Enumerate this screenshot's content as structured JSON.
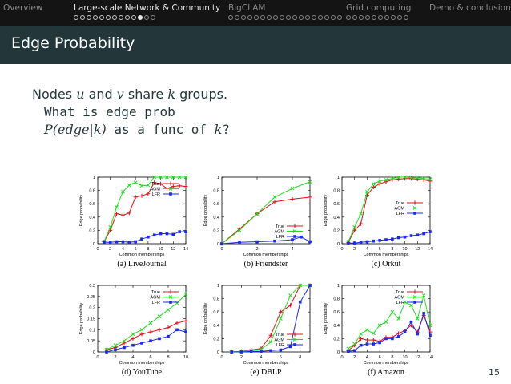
{
  "nav": {
    "sections": [
      {
        "label": "Overview",
        "dots": 0,
        "done": 0,
        "current": -1
      },
      {
        "label": "Large-scale Network & Community",
        "dots": 13,
        "done": 10,
        "current": 10
      },
      {
        "label": "BigCLAM",
        "dots": 18,
        "done": 0,
        "current": -1
      },
      {
        "label": "Grid computing",
        "dots": 10,
        "done": 0,
        "current": -1
      },
      {
        "label": "Demo & conclusion",
        "dots": 0,
        "done": 0,
        "current": -1
      }
    ]
  },
  "slide": {
    "title": "Edge Probability",
    "line1": {
      "a": "Nodes ",
      "u": "u",
      "b": " and ",
      "v": "v",
      "c": " share ",
      "k": "k",
      "d": " groups."
    },
    "line2": "What is edge prob",
    "line3": {
      "expr": "P(edge|k)",
      "mid": " as a func of ",
      "k": "k",
      "end": "?"
    },
    "page_number": "15"
  },
  "chart_data": [
    {
      "type": "line",
      "caption": "(a) LiveJournal",
      "xlabel": "Common memberships",
      "ylabel": "Edge probability",
      "xlim": [
        0,
        14
      ],
      "ylim": [
        0,
        1
      ],
      "xticks": [
        "0",
        "2",
        "4",
        "6",
        "8",
        "10",
        "12",
        "14"
      ],
      "yticks": [
        "0",
        "0.2",
        "0.4",
        "0.6",
        "0.8",
        "1"
      ],
      "legend": "top-right",
      "series": [
        {
          "name": "True",
          "color": "#e0101a",
          "marker": "plus",
          "x": [
            1,
            2,
            3,
            4,
            5,
            6,
            7,
            8,
            9,
            10,
            11,
            12,
            13,
            14
          ],
          "y": [
            0.03,
            0.2,
            0.45,
            0.43,
            0.46,
            0.7,
            0.72,
            0.75,
            0.92,
            0.9,
            0.83,
            0.86,
            0.87,
            0.86
          ]
        },
        {
          "name": "AGM",
          "color": "#22dd22",
          "marker": "x",
          "x": [
            1,
            2,
            3,
            4,
            5,
            6,
            7,
            8,
            9,
            10,
            11,
            12,
            13,
            14
          ],
          "y": [
            0.03,
            0.25,
            0.55,
            0.78,
            0.88,
            0.92,
            0.87,
            0.88,
            1,
            1,
            1,
            1,
            1,
            1
          ]
        },
        {
          "name": "LFR",
          "color": "#1a2ae8",
          "marker": "square",
          "x": [
            1,
            2,
            3,
            4,
            5,
            6,
            7,
            8,
            9,
            10,
            11,
            12,
            13,
            14
          ],
          "y": [
            0.02,
            0.02,
            0.03,
            0.03,
            0.02,
            0.03,
            0.07,
            0.1,
            0.13,
            0.15,
            0.15,
            0.14,
            0.18,
            0.18
          ]
        }
      ]
    },
    {
      "type": "line",
      "caption": "(b) Friendster",
      "xlabel": "Common memberships",
      "ylabel": "Edge probability",
      "xlim": [
        0,
        5
      ],
      "ylim": [
        0,
        1
      ],
      "xticks": [
        "0",
        "2",
        "4"
      ],
      "yticks": [
        "0",
        "0.2",
        "0.4",
        "0.6",
        "0.8",
        "1"
      ],
      "legend": "bottom-right",
      "series": [
        {
          "name": "True",
          "color": "#e0101a",
          "marker": "plus",
          "x": [
            0,
            1,
            2,
            3,
            4,
            5
          ],
          "y": [
            0,
            0.22,
            0.45,
            0.63,
            0.67,
            0.7
          ]
        },
        {
          "name": "AGM",
          "color": "#22dd22",
          "marker": "x",
          "x": [
            0,
            1,
            2,
            3,
            4,
            5
          ],
          "y": [
            0,
            0.2,
            0.45,
            0.7,
            0.83,
            0.93
          ]
        },
        {
          "name": "LFR",
          "color": "#1a2ae8",
          "marker": "square",
          "x": [
            0,
            1,
            2,
            3,
            4,
            4.5,
            5
          ],
          "y": [
            0,
            0.02,
            0.03,
            0.04,
            0.06,
            0.1,
            0.03
          ]
        }
      ]
    },
    {
      "type": "line",
      "caption": "(c) Orkut",
      "xlabel": "Common memberships",
      "ylabel": "Edge probability",
      "xlim": [
        0,
        14
      ],
      "ylim": [
        0,
        1
      ],
      "xticks": [
        "0",
        "2",
        "4",
        "6",
        "8",
        "10",
        "12",
        "14"
      ],
      "yticks": [
        "0",
        "0.2",
        "0.4",
        "0.6",
        "0.8",
        "1"
      ],
      "legend": "right",
      "series": [
        {
          "name": "True",
          "color": "#e0101a",
          "marker": "plus",
          "x": [
            1,
            2,
            3,
            4,
            5,
            6,
            7,
            8,
            9,
            10,
            11,
            12,
            13,
            14
          ],
          "y": [
            0.02,
            0.2,
            0.3,
            0.73,
            0.85,
            0.9,
            0.93,
            0.96,
            0.97,
            0.98,
            0.98,
            0.97,
            0.96,
            0.94
          ]
        },
        {
          "name": "AGM",
          "color": "#22dd22",
          "marker": "x",
          "x": [
            1,
            2,
            3,
            4,
            5,
            6,
            7,
            8,
            9,
            10,
            11,
            12,
            13,
            14
          ],
          "y": [
            0.03,
            0.25,
            0.45,
            0.78,
            0.9,
            0.94,
            0.96,
            0.98,
            1,
            1,
            0.99,
            0.99,
            0.98,
            0.97
          ]
        },
        {
          "name": "LFR",
          "color": "#1a2ae8",
          "marker": "square",
          "x": [
            1,
            2,
            3,
            4,
            5,
            6,
            7,
            8,
            9,
            10,
            11,
            12,
            13,
            14
          ],
          "y": [
            0.01,
            0.01,
            0.02,
            0.03,
            0.04,
            0.05,
            0.06,
            0.07,
            0.09,
            0.1,
            0.12,
            0.13,
            0.15,
            0.18
          ]
        }
      ]
    },
    {
      "type": "line",
      "caption": "(d) YouTube",
      "xlabel": "Common memberships",
      "ylabel": "Edge probability",
      "xlim": [
        0,
        10
      ],
      "ylim": [
        0,
        0.3
      ],
      "xticks": [
        "0",
        "2",
        "4",
        "6",
        "8",
        "10"
      ],
      "yticks": [
        "0",
        "0.05",
        "0.1",
        "0.15",
        "0.2",
        "0.25",
        "0.3"
      ],
      "legend": "top-right",
      "series": [
        {
          "name": "True",
          "color": "#e0101a",
          "marker": "plus",
          "x": [
            1,
            2,
            3,
            4,
            5,
            6,
            7,
            8,
            9,
            10
          ],
          "y": [
            0.01,
            0.02,
            0.04,
            0.06,
            0.08,
            0.09,
            0.1,
            0.11,
            0.13,
            0.14
          ]
        },
        {
          "name": "AGM",
          "color": "#22dd22",
          "marker": "x",
          "x": [
            1,
            2,
            3,
            4,
            5,
            6,
            7,
            8,
            9,
            10
          ],
          "y": [
            0.01,
            0.03,
            0.05,
            0.08,
            0.1,
            0.13,
            0.16,
            0.19,
            0.22,
            0.26
          ]
        },
        {
          "name": "LFR",
          "color": "#1a2ae8",
          "marker": "square",
          "x": [
            1,
            2,
            3,
            4,
            5,
            6,
            7,
            8,
            9,
            10
          ],
          "y": [
            0.0,
            0.01,
            0.02,
            0.03,
            0.04,
            0.05,
            0.06,
            0.07,
            0.1,
            0.09
          ]
        }
      ]
    },
    {
      "type": "line",
      "caption": "(e) DBLP",
      "xlabel": "Common memberships",
      "ylabel": "Edge probability",
      "xlim": [
        0,
        9
      ],
      "ylim": [
        0,
        1
      ],
      "xticks": [
        "0",
        "2",
        "4",
        "6",
        "8"
      ],
      "yticks": [
        "0",
        "0.2",
        "0.4",
        "0.6",
        "0.8",
        "1"
      ],
      "legend": "bottom-right",
      "series": [
        {
          "name": "True",
          "color": "#e0101a",
          "marker": "plus",
          "x": [
            1,
            2,
            3,
            4,
            5,
            6,
            7,
            8,
            9
          ],
          "y": [
            0.0,
            0.01,
            0.03,
            0.05,
            0.25,
            0.6,
            0.7,
            1,
            1
          ]
        },
        {
          "name": "AGM",
          "color": "#22dd22",
          "marker": "x",
          "x": [
            1,
            2,
            3,
            4,
            5,
            6,
            7,
            8,
            9
          ],
          "y": [
            0.0,
            0.01,
            0.02,
            0.04,
            0.15,
            0.5,
            0.85,
            1,
            1
          ]
        },
        {
          "name": "LFR",
          "color": "#1a2ae8",
          "marker": "square",
          "x": [
            1,
            2,
            3,
            4,
            5,
            6,
            7,
            8,
            9
          ],
          "y": [
            0.0,
            0.0,
            0.01,
            0.01,
            0.02,
            0.03,
            0.08,
            0.75,
            1
          ]
        }
      ]
    },
    {
      "type": "line",
      "caption": "(f) Amazon",
      "xlabel": "Common memberships",
      "ylabel": "Edge probability",
      "xlim": [
        0,
        14
      ],
      "ylim": [
        0,
        1
      ],
      "xticks": [
        "0",
        "2",
        "4",
        "6",
        "8",
        "10",
        "12",
        "14"
      ],
      "yticks": [
        "0",
        "0.2",
        "0.4",
        "0.6",
        "0.8",
        "1"
      ],
      "legend": "top-right",
      "series": [
        {
          "name": "True",
          "color": "#e0101a",
          "marker": "plus",
          "x": [
            1,
            2,
            3,
            4,
            5,
            6,
            7,
            8,
            9,
            10,
            11,
            12,
            13,
            14
          ],
          "y": [
            0.02,
            0.1,
            0.2,
            0.18,
            0.18,
            0.16,
            0.22,
            0.22,
            0.28,
            0.32,
            0.4,
            0.3,
            0.55,
            0.3
          ]
        },
        {
          "name": "AGM",
          "color": "#22dd22",
          "marker": "x",
          "x": [
            1,
            2,
            3,
            4,
            5,
            6,
            7,
            8,
            9,
            10,
            11,
            12,
            13,
            14
          ],
          "y": [
            0.05,
            0.12,
            0.27,
            0.33,
            0.28,
            0.4,
            0.45,
            0.6,
            0.5,
            0.75,
            0.7,
            0.5,
            0.85,
            0.4
          ]
        },
        {
          "name": "LFR",
          "color": "#1a2ae8",
          "marker": "square",
          "x": [
            1,
            2,
            3,
            4,
            5,
            6,
            7,
            8,
            9,
            10,
            11,
            12,
            13,
            14
          ],
          "y": [
            0.01,
            0.02,
            0.1,
            0.12,
            0.12,
            0.14,
            0.2,
            0.2,
            0.23,
            0.3,
            0.45,
            0.27,
            0.58,
            0.25
          ]
        }
      ]
    }
  ]
}
